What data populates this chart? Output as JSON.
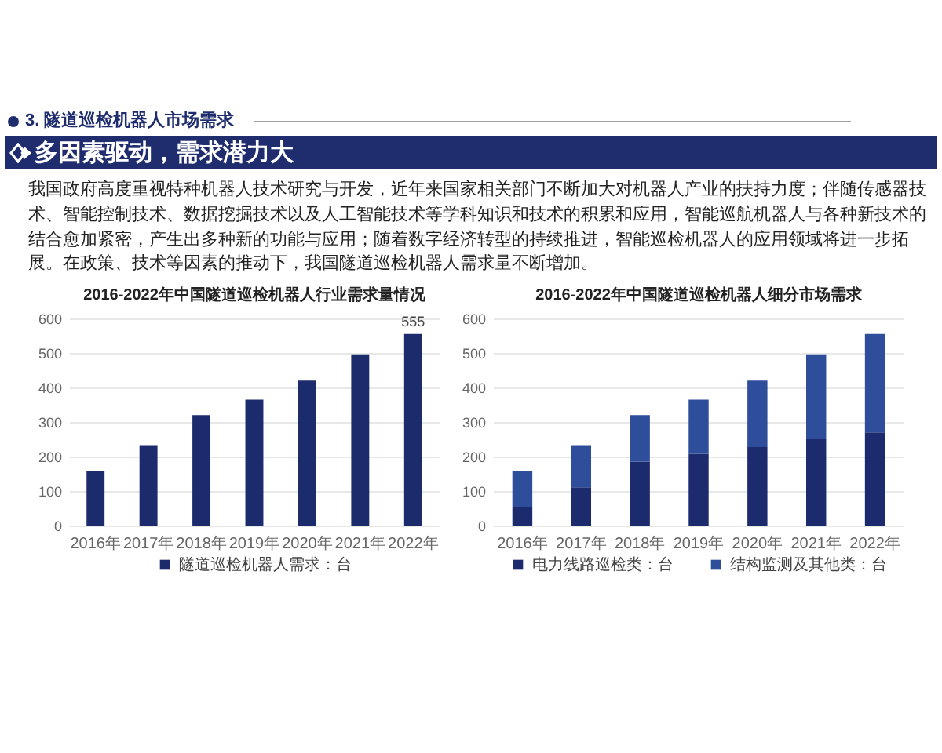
{
  "chart_data": [
    {
      "type": "other",
      "title": "3. 隧道巡检机器人市场需求",
      "subtitle": "多因素驱动，需求潜力大",
      "annotations": [
        "我国政府高度重视特种机器人技术研究与开发，近年来国家相关部门不断加大对机器人产业的扶持力度；伴随传感器技术、智能控制技术、数据挖掘技术以及人工智能技术等学科知识和技术的积累和应用，智能巡航机器人与各种新技术的结合愈加紧密，产生出多种新的功能与应用；随着数字经济转型的持续推进，智能巡检机器人的应用领域将进一步拓展。在政策、技术等因素的推动下，我国隧道巡检机器人需求量不断增加。"
      ]
    },
    {
      "type": "bar",
      "title": "2016-2022年中国隧道巡检机器人行业需求量情况",
      "categories": [
        "2016年",
        "2017年",
        "2018年",
        "2019年",
        "2020年",
        "2021年",
        "2022年"
      ],
      "series": [
        {
          "name": "隧道巡检机器人需求：台",
          "color": "#1c2b6b",
          "values": [
            158,
            233,
            320,
            365,
            420,
            496,
            555
          ],
          "value_labels": [
            null,
            null,
            null,
            null,
            null,
            null,
            "555"
          ]
        }
      ],
      "ylim": [
        0,
        600
      ],
      "yticks": [
        0,
        100,
        200,
        300,
        400,
        500,
        600
      ],
      "grid": "y",
      "legend": "bottom"
    },
    {
      "type": "bar",
      "title": "2016-2022年中国隧道巡检机器人细分市场需求",
      "categories": [
        "2016年",
        "2017年",
        "2018年",
        "2019年",
        "2020年",
        "2021年",
        "2022年"
      ],
      "series": [
        {
          "name": "电力线路巡检类：台",
          "color": "#1c2b6d",
          "values": [
            53,
            111,
            185,
            208,
            227,
            250,
            270
          ]
        },
        {
          "name": "结构监测及其他类：台",
          "color": "#2e4e9b",
          "values": [
            105,
            122,
            135,
            157,
            193,
            246,
            285
          ]
        }
      ],
      "stacked": true,
      "ylim": [
        0,
        600
      ],
      "yticks": [
        0,
        100,
        200,
        300,
        400,
        500,
        600
      ],
      "grid": "y",
      "legend": "bottom"
    }
  ]
}
